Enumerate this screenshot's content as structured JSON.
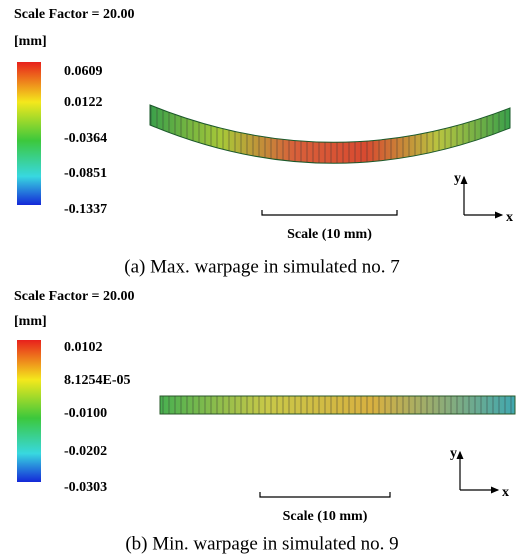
{
  "panels": [
    {
      "scale_factor": "Scale Factor = 20.00",
      "unit": "[mm]",
      "colorbar_labels": [
        "0.0609",
        "0.0122",
        "-0.0364",
        "-0.0851",
        "-0.1337"
      ],
      "scale_bar": "Scale (10 mm)",
      "axis_y": "y",
      "axis_x": "x",
      "caption": "(a) Max. warpage in simulated no. 7"
    },
    {
      "scale_factor": "Scale Factor = 20.00",
      "unit": "[mm]",
      "colorbar_labels": [
        "0.0102",
        "8.1254E-05",
        "-0.0100",
        "-0.0202",
        "-0.0303"
      ],
      "scale_bar": "Scale (10 mm)",
      "axis_y": "y",
      "axis_x": "x",
      "caption": "(b) Min. warpage in simulated no. 9"
    }
  ]
}
